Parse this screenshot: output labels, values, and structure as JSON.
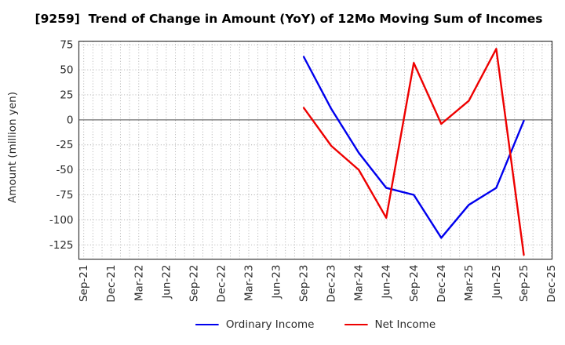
{
  "chart_data": {
    "type": "line",
    "title": "[9259]  Trend of Change in Amount (YoY) of 12Mo Moving Sum of Incomes",
    "xlabel": "",
    "ylabel": "Amount (million yen)",
    "categories": [
      "Sep-21",
      "Dec-21",
      "Mar-22",
      "Jun-22",
      "Sep-22",
      "Dec-22",
      "Mar-23",
      "Jun-23",
      "Sep-23",
      "Dec-23",
      "Mar-24",
      "Jun-24",
      "Sep-24",
      "Dec-24",
      "Mar-25",
      "Jun-25",
      "Sep-25",
      "Dec-25"
    ],
    "series": [
      {
        "name": "Ordinary Income",
        "color": "#0000ee",
        "values": [
          null,
          null,
          null,
          null,
          null,
          null,
          null,
          null,
          63,
          11,
          -33,
          -68,
          -75,
          -118,
          -85,
          -68,
          -1,
          null
        ]
      },
      {
        "name": "Net Income",
        "color": "#ee0000",
        "values": [
          null,
          null,
          null,
          null,
          null,
          null,
          null,
          null,
          12,
          -26,
          -50,
          -98,
          57,
          -4,
          19,
          71,
          -135,
          null
        ]
      }
    ],
    "yticks": [
      75,
      50,
      25,
      0,
      -25,
      -50,
      -75,
      -100,
      -125
    ],
    "ylim": [
      -139.3,
      78.7
    ],
    "grid": true,
    "minor_x_divisions": 3,
    "xticklabel_rotation": 90,
    "legend_position": "bottom-center",
    "zero_line_color": "#6e6e6e",
    "gridline_color": "#a8a8a8",
    "tick_label_color": "#2b2b2b"
  }
}
